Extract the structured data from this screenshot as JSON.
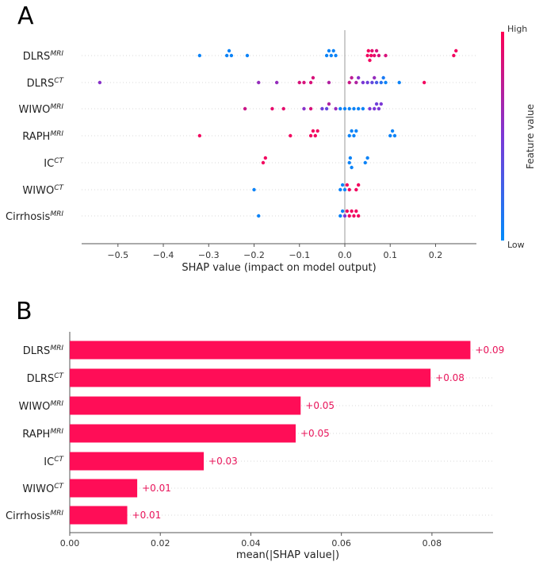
{
  "panels": {
    "a_label": "A",
    "b_label": "B"
  },
  "colors": {
    "high": "#ff0052",
    "low": "#008bfb",
    "bar": "#ff0d57",
    "axis": "#555555",
    "grid": "#cccccc"
  },
  "chart_data": [
    {
      "type": "scatter",
      "title": "",
      "xlabel": "SHAP value (impact on model output)",
      "xlim": [
        -0.58,
        0.29
      ],
      "xticks": [
        -0.5,
        -0.4,
        -0.3,
        -0.2,
        -0.1,
        0.0,
        0.1,
        0.2
      ],
      "xtick_labels": [
        "−0.5",
        "−0.4",
        "−0.3",
        "−0.2",
        "−0.1",
        "0.0",
        "0.1",
        "0.2"
      ],
      "features": [
        {
          "base": "DLRS",
          "sup": "MRI"
        },
        {
          "base": "DLRS",
          "sup": "CT"
        },
        {
          "base": "WIWO",
          "sup": "MRI"
        },
        {
          "base": "RAPH",
          "sup": "MRI"
        },
        {
          "base": "IC",
          "sup": "CT"
        },
        {
          "base": "WIWO",
          "sup": "CT"
        },
        {
          "base": "Cirrhosis",
          "sup": "MRI"
        }
      ],
      "points": [
        [
          [
            -0.32,
            0.05
          ],
          [
            -0.26,
            0.05
          ],
          [
            -0.255,
            0.05
          ],
          [
            -0.25,
            0.05
          ],
          [
            -0.215,
            0.05
          ],
          [
            -0.04,
            0.05
          ],
          [
            -0.035,
            0.05
          ],
          [
            -0.03,
            0.05
          ],
          [
            -0.025,
            0.05
          ],
          [
            -0.02,
            0.05
          ],
          [
            0.05,
            0.95
          ],
          [
            0.052,
            0.95
          ],
          [
            0.055,
            0.95
          ],
          [
            0.058,
            0.95
          ],
          [
            0.06,
            0.9
          ],
          [
            0.065,
            0.9
          ],
          [
            0.07,
            0.85
          ],
          [
            0.075,
            0.85
          ],
          [
            0.09,
            0.85
          ],
          [
            0.24,
            0.95
          ],
          [
            0.245,
            0.95
          ]
        ],
        [
          [
            -0.54,
            0.55
          ],
          [
            -0.19,
            0.6
          ],
          [
            -0.15,
            0.6
          ],
          [
            -0.1,
            0.85
          ],
          [
            -0.09,
            0.85
          ],
          [
            -0.075,
            0.85
          ],
          [
            -0.07,
            0.85
          ],
          [
            -0.035,
            0.7
          ],
          [
            0.01,
            0.8
          ],
          [
            0.015,
            0.75
          ],
          [
            0.025,
            0.7
          ],
          [
            0.03,
            0.55
          ],
          [
            0.04,
            0.5
          ],
          [
            0.05,
            0.45
          ],
          [
            0.06,
            0.4
          ],
          [
            0.065,
            0.6
          ],
          [
            0.07,
            0.3
          ],
          [
            0.08,
            0.15
          ],
          [
            0.085,
            0.1
          ],
          [
            0.09,
            0.05
          ],
          [
            0.12,
            0.05
          ],
          [
            0.175,
            0.95
          ]
        ],
        [
          [
            -0.22,
            0.8
          ],
          [
            -0.16,
            0.9
          ],
          [
            -0.135,
            0.9
          ],
          [
            -0.09,
            0.55
          ],
          [
            -0.075,
            0.85
          ],
          [
            -0.05,
            0.45
          ],
          [
            -0.04,
            0.4
          ],
          [
            -0.035,
            0.7
          ],
          [
            -0.02,
            0.6
          ],
          [
            -0.01,
            0.05
          ],
          [
            0.0,
            0.05
          ],
          [
            0.01,
            0.05
          ],
          [
            0.02,
            0.05
          ],
          [
            0.03,
            0.05
          ],
          [
            0.04,
            0.05
          ],
          [
            0.055,
            0.5
          ],
          [
            0.065,
            0.5
          ],
          [
            0.07,
            0.45
          ],
          [
            0.075,
            0.5
          ],
          [
            0.08,
            0.5
          ]
        ],
        [
          [
            -0.32,
            0.95
          ],
          [
            -0.12,
            0.95
          ],
          [
            -0.075,
            0.95
          ],
          [
            -0.07,
            0.95
          ],
          [
            -0.065,
            0.95
          ],
          [
            -0.06,
            0.95
          ],
          [
            0.01,
            0.05
          ],
          [
            0.015,
            0.05
          ],
          [
            0.02,
            0.05
          ],
          [
            0.025,
            0.05
          ],
          [
            0.1,
            0.05
          ],
          [
            0.105,
            0.05
          ],
          [
            0.11,
            0.05
          ]
        ],
        [
          [
            -0.18,
            0.95
          ],
          [
            -0.175,
            0.95
          ],
          [
            0.01,
            0.05
          ],
          [
            0.012,
            0.05
          ],
          [
            0.015,
            0.05
          ],
          [
            0.045,
            0.05
          ],
          [
            0.05,
            0.05
          ]
        ],
        [
          [
            -0.2,
            0.05
          ],
          [
            -0.01,
            0.05
          ],
          [
            -0.005,
            0.05
          ],
          [
            0.0,
            0.05
          ],
          [
            0.005,
            0.95
          ],
          [
            0.01,
            0.95
          ],
          [
            0.025,
            0.95
          ],
          [
            0.03,
            0.95
          ]
        ],
        [
          [
            -0.19,
            0.05
          ],
          [
            -0.01,
            0.05
          ],
          [
            -0.005,
            0.05
          ],
          [
            0.0,
            0.5
          ],
          [
            0.005,
            0.95
          ],
          [
            0.01,
            0.95
          ],
          [
            0.015,
            0.95
          ],
          [
            0.02,
            0.95
          ],
          [
            0.025,
            0.95
          ],
          [
            0.03,
            0.95
          ]
        ]
      ],
      "colorbar": {
        "high": "High",
        "low": "Low",
        "title": "Feature value"
      }
    },
    {
      "type": "bar",
      "orientation": "horizontal",
      "xlabel": "mean(|SHAP value|)",
      "xlim": [
        0,
        0.0935
      ],
      "xticks": [
        0.0,
        0.02,
        0.04,
        0.06,
        0.08
      ],
      "xtick_labels": [
        "0.00",
        "0.02",
        "0.04",
        "0.06",
        "0.08"
      ],
      "categories": [
        {
          "base": "DLRS",
          "sup": "MRI"
        },
        {
          "base": "DLRS",
          "sup": "CT"
        },
        {
          "base": "WIWO",
          "sup": "MRI"
        },
        {
          "base": "RAPH",
          "sup": "MRI"
        },
        {
          "base": "IC",
          "sup": "CT"
        },
        {
          "base": "WIWO",
          "sup": "CT"
        },
        {
          "base": "Cirrhosis",
          "sup": "MRI"
        }
      ],
      "values": [
        0.0885,
        0.0797,
        0.051,
        0.0499,
        0.0296,
        0.0149,
        0.0127
      ],
      "value_labels": [
        "+0.09",
        "+0.08",
        "+0.05",
        "+0.05",
        "+0.03",
        "+0.01",
        "+0.01"
      ]
    }
  ]
}
